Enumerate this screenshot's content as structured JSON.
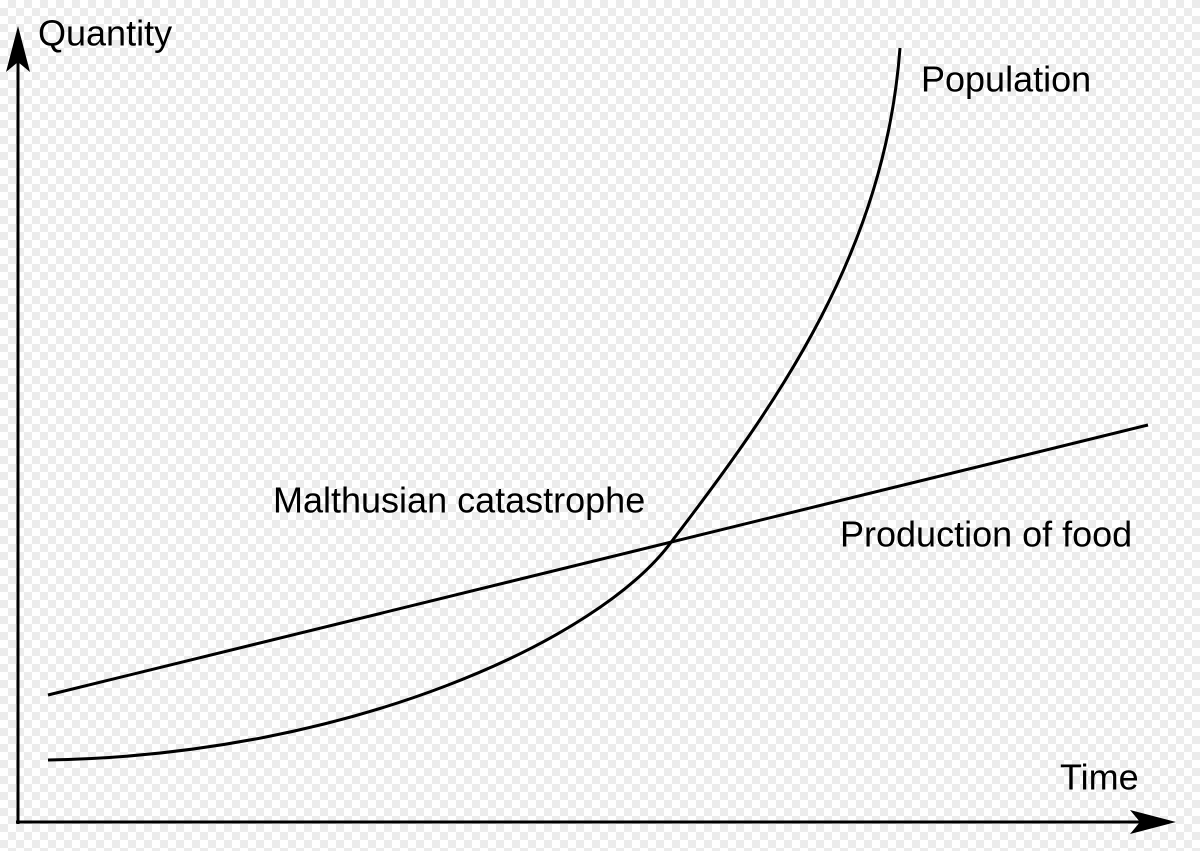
{
  "axes": {
    "y_label": "Quantity",
    "x_label": "Time"
  },
  "curves": [
    {
      "label": "Population"
    },
    {
      "label": "Production of food"
    }
  ],
  "annotation": "Malthusian catastrophe"
}
